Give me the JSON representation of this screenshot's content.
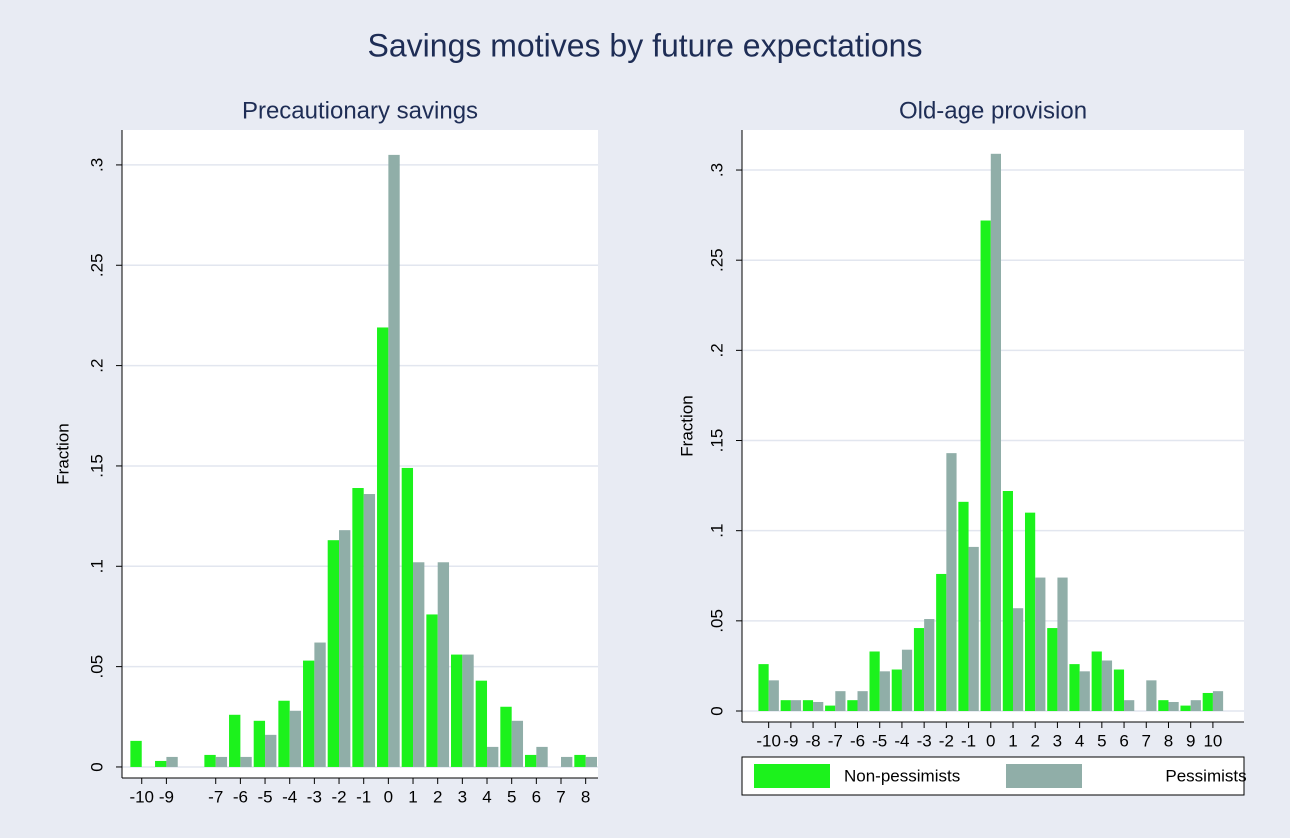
{
  "title": "Savings motives by future expectations",
  "chart_data": [
    {
      "type": "bar",
      "title": "Precautionary savings",
      "ylabel": "Fraction",
      "x": [
        -10,
        -9,
        -7,
        -6,
        -5,
        -4,
        -3,
        -2,
        -1,
        0,
        1,
        2,
        3,
        4,
        5,
        6,
        7,
        8
      ],
      "series": [
        {
          "name": "Non-pessimists",
          "color": "#1cf21c",
          "values": [
            0.013,
            0.003,
            0.006,
            0.026,
            0.023,
            0.033,
            0.053,
            0.113,
            0.139,
            0.219,
            0.149,
            0.076,
            0.056,
            0.043,
            0.03,
            0.006,
            0,
            0.006
          ]
        },
        {
          "name": "Pessimists",
          "color": "#90aea8",
          "values": [
            0,
            0.005,
            0.005,
            0.005,
            0.016,
            0.028,
            0.062,
            0.118,
            0.136,
            0.305,
            0.102,
            0.102,
            0.056,
            0.01,
            0.023,
            0.01,
            0.005,
            0.005
          ]
        }
      ],
      "xlim": [
        -10.8,
        8.5
      ],
      "xticks": [
        -10,
        -9,
        -7,
        -6,
        -5,
        -4,
        -3,
        -2,
        -1,
        0,
        1,
        2,
        3,
        4,
        5,
        6,
        7,
        8
      ],
      "ylim": [
        -0.0055,
        0.3174
      ],
      "yticks": [
        0,
        {
          "value": 0.05,
          "label": ".05"
        },
        {
          "value": 0.1,
          "label": ".1"
        },
        {
          "value": 0.15,
          "label": ".15"
        },
        {
          "value": 0.2,
          "label": ".2"
        },
        {
          "value": 0.25,
          "label": ".25"
        },
        {
          "value": 0.3,
          "label": ".3"
        }
      ],
      "grid": true
    },
    {
      "type": "bar",
      "title": "Old-age provision",
      "ylabel": "Fraction",
      "x": [
        -10,
        -9,
        -8,
        -7,
        -6,
        -5,
        -4,
        -3,
        -2,
        -1,
        0,
        1,
        2,
        3,
        4,
        5,
        6,
        7,
        8,
        9,
        10
      ],
      "series": [
        {
          "name": "Non-pessimists",
          "color": "#1cf21c",
          "values": [
            0.026,
            0.006,
            0.006,
            0.003,
            0.006,
            0.033,
            0.023,
            0.046,
            0.076,
            0.116,
            0.272,
            0.122,
            0.11,
            0.046,
            0.026,
            0.033,
            0.023,
            0,
            0.006,
            0.003,
            0.01
          ]
        },
        {
          "name": "Pessimists",
          "color": "#90aea8",
          "values": [
            0.017,
            0.006,
            0.005,
            0.011,
            0.011,
            0.022,
            0.034,
            0.051,
            0.143,
            0.091,
            0.309,
            0.057,
            0.074,
            0.074,
            0.022,
            0.028,
            0.006,
            0.017,
            0.005,
            0.006,
            0.011
          ]
        }
      ],
      "xlim": [
        -11.2,
        11.4
      ],
      "xticks": [
        -10,
        -9,
        -8,
        -7,
        -6,
        -5,
        -4,
        -3,
        -2,
        -1,
        0,
        1,
        2,
        3,
        4,
        5,
        6,
        7,
        8,
        9,
        10
      ],
      "ylim": [
        -0.0061,
        0.3222
      ],
      "yticks": [
        0,
        {
          "value": 0.05,
          "label": ".05"
        },
        {
          "value": 0.1,
          "label": ".1"
        },
        {
          "value": 0.15,
          "label": ".15"
        },
        {
          "value": 0.2,
          "label": ".2"
        },
        {
          "value": 0.25,
          "label": ".25"
        },
        {
          "value": 0.3,
          "label": ".3"
        }
      ],
      "grid": true,
      "legend": "bottom"
    }
  ]
}
